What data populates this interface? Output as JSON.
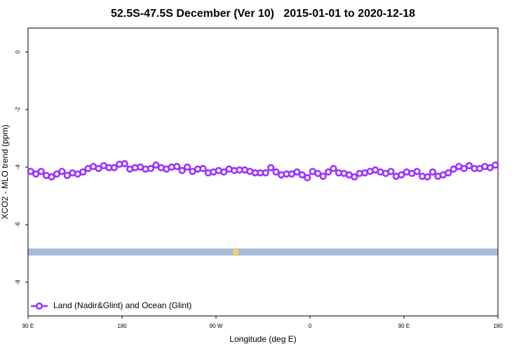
{
  "chart_data": {
    "type": "line",
    "title": "52.5S-47.5S December (Ver 10)   2015-01-01 to 2020-12-18",
    "x_label": "Longitude (deg E)",
    "y_label": "XCO2 - MLO trend (ppm)",
    "xlim": [
      90,
      540
    ],
    "ylim": [
      -9.17,
      0.83
    ],
    "xticks": [
      {
        "value": 90,
        "label": "90 E"
      },
      180,
      {
        "value": 270,
        "label": "90 W"
      },
      {
        "value": 360,
        "label": "0"
      },
      {
        "value": 450,
        "label": "90 E"
      },
      {
        "value": 540,
        "label": "180"
      }
    ],
    "yticks": [
      0,
      -2,
      -4,
      -6,
      -8
    ],
    "x": [
      92.5,
      97.5,
      102.5,
      107.5,
      112.5,
      117.5,
      122.5,
      127.5,
      132.5,
      137.5,
      142.5,
      147.5,
      152.5,
      157.5,
      162.5,
      167.5,
      172.5,
      177.5,
      182.5,
      187.5,
      192.5,
      197.5,
      202.5,
      207.5,
      212.5,
      217.5,
      222.5,
      227.5,
      232.5,
      237.5,
      242.5,
      247.5,
      252.5,
      257.5,
      262.5,
      267.5,
      272.5,
      277.5,
      282.5,
      287.5,
      292.5,
      297.5,
      302.5,
      307.5,
      312.5,
      317.5,
      322.5,
      327.5,
      332.5,
      337.5,
      342.5,
      347.5,
      352.5,
      357.5,
      362.5,
      367.5,
      372.5,
      377.5,
      382.5,
      387.5,
      392.5,
      397.5,
      402.5,
      407.5,
      412.5,
      417.5,
      422.5,
      427.5,
      432.5,
      437.5,
      442.5,
      447.5,
      452.5,
      457.5,
      462.5,
      467.5,
      472.5,
      477.5,
      482.5,
      487.5,
      492.5,
      497.5,
      502.5,
      507.5,
      512.5,
      517.5,
      522.5,
      527.5,
      532.5,
      537.5
    ],
    "series": [
      {
        "name": "Land (Nadir&Glint) and Ocean (Glint)",
        "color": "#9b30ff",
        "values": [
          -4.15,
          -4.24,
          -4.15,
          -4.29,
          -4.34,
          -4.24,
          -4.15,
          -4.29,
          -4.2,
          -4.24,
          -4.17,
          -4.05,
          -3.98,
          -4.05,
          -3.95,
          -4.02,
          -4.02,
          -3.9,
          -3.88,
          -4.07,
          -4.02,
          -4.0,
          -4.07,
          -4.05,
          -3.93,
          -4.02,
          -4.07,
          -4.0,
          -3.98,
          -4.12,
          -4.0,
          -4.15,
          -4.07,
          -4.05,
          -4.2,
          -4.17,
          -4.12,
          -4.17,
          -4.07,
          -4.12,
          -4.1,
          -4.1,
          -4.15,
          -4.2,
          -4.2,
          -4.2,
          -4.02,
          -4.17,
          -4.27,
          -4.24,
          -4.24,
          -4.17,
          -4.27,
          -4.37,
          -4.15,
          -4.22,
          -4.32,
          -4.17,
          -4.05,
          -4.2,
          -4.22,
          -4.27,
          -4.34,
          -4.22,
          -4.2,
          -4.15,
          -4.1,
          -4.17,
          -4.22,
          -4.15,
          -4.32,
          -4.27,
          -4.17,
          -4.22,
          -4.15,
          -4.32,
          -4.34,
          -4.17,
          -4.32,
          -4.27,
          -4.2,
          -4.07,
          -3.98,
          -4.05,
          -3.95,
          -4.05,
          -4.05,
          -3.98,
          -4.02,
          -3.93
        ]
      }
    ],
    "legend": "bottom-left"
  }
}
